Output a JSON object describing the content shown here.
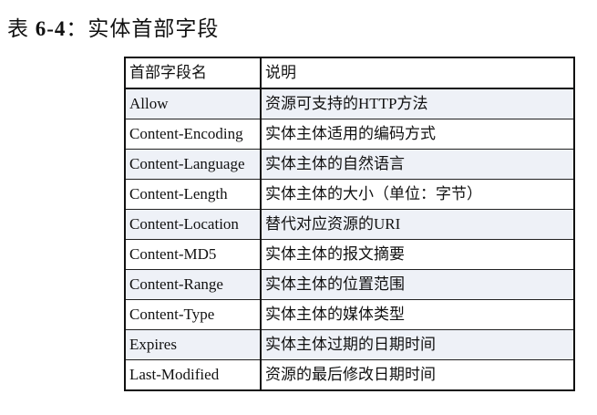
{
  "title": {
    "prefix": "表 ",
    "number": "6-4",
    "suffix": "：实体首部字段"
  },
  "table": {
    "headers": [
      "首部字段名",
      "说明"
    ],
    "shade_color": "#eef1f7",
    "rows": [
      {
        "name": "Allow",
        "desc": "资源可支持的HTTP方法",
        "shaded": true
      },
      {
        "name": "Content-Encoding",
        "desc": "实体主体适用的编码方式",
        "shaded": false
      },
      {
        "name": "Content-Language",
        "desc": "实体主体的自然语言",
        "shaded": true
      },
      {
        "name": "Content-Length",
        "desc": "实体主体的大小（单位：字节）",
        "shaded": false
      },
      {
        "name": "Content-Location",
        "desc": "替代对应资源的URI",
        "shaded": true
      },
      {
        "name": "Content-MD5",
        "desc": "实体主体的报文摘要",
        "shaded": false
      },
      {
        "name": "Content-Range",
        "desc": "实体主体的位置范围",
        "shaded": true
      },
      {
        "name": "Content-Type",
        "desc": "实体主体的媒体类型",
        "shaded": false
      },
      {
        "name": "Expires",
        "desc": "实体主体过期的日期时间",
        "shaded": true
      },
      {
        "name": "Last-Modified",
        "desc": "资源的最后修改日期时间",
        "shaded": false
      }
    ]
  }
}
